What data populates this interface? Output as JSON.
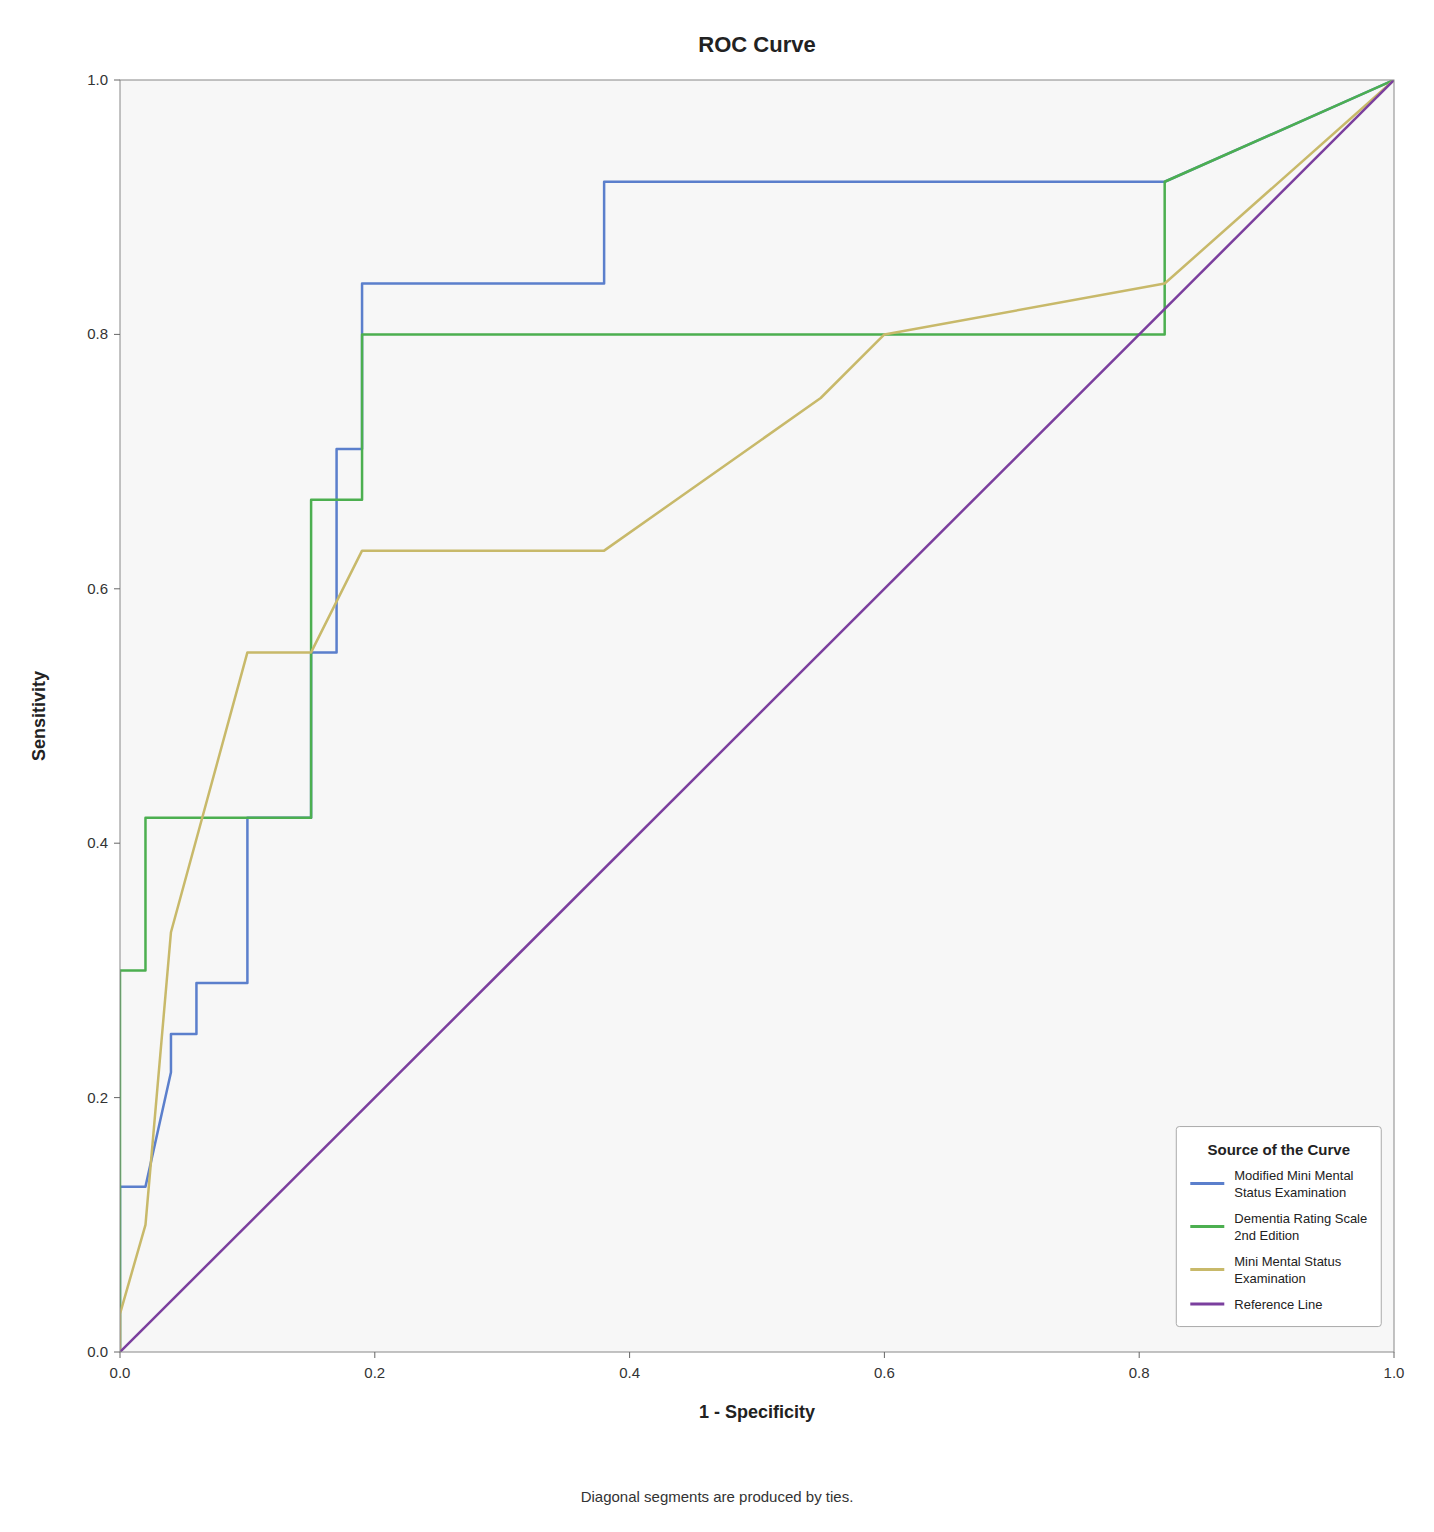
{
  "chart_data": {
    "type": "line",
    "title": "ROC Curve",
    "xlabel": "1 - Specificity",
    "ylabel": "Sensitivity",
    "annotations": [
      "Diagonal segments are produced by ties."
    ],
    "legend_title": "Source of the Curve",
    "xlim": [
      0.0,
      1.0
    ],
    "ylim": [
      0.0,
      1.0
    ],
    "xticks": [
      {
        "value": 0.0,
        "label": "0.0"
      },
      0.2,
      0.4,
      0.6,
      0.8,
      {
        "value": 1.0,
        "label": "1.0"
      }
    ],
    "yticks": [
      {
        "value": 0.0,
        "label": "0.0"
      },
      0.2,
      0.4,
      0.6,
      0.8,
      {
        "value": 1.0,
        "label": "1.0"
      }
    ],
    "grid": false,
    "legend": "lower right",
    "series": [
      {
        "name": "Modified Mini Mental\nStatus Examination",
        "color": "#5b7fcc",
        "x": [
          0.0,
          0.0,
          0.02,
          0.04,
          0.04,
          0.06,
          0.06,
          0.1,
          0.1,
          0.15,
          0.15,
          0.17,
          0.17,
          0.19,
          0.19,
          0.38,
          0.38,
          0.55,
          0.82,
          1.0
        ],
        "values": [
          0.0,
          0.13,
          0.13,
          0.22,
          0.25,
          0.25,
          0.29,
          0.29,
          0.42,
          0.42,
          0.55,
          0.55,
          0.71,
          0.71,
          0.84,
          0.84,
          0.92,
          0.92,
          0.92,
          1.0
        ]
      },
      {
        "name": "Dementia Rating Scale\n2nd Edition",
        "color": "#4caf50",
        "x": [
          0.0,
          0.0,
          0.02,
          0.02,
          0.15,
          0.15,
          0.19,
          0.19,
          0.38,
          0.55,
          0.82,
          0.82,
          1.0
        ],
        "values": [
          0.0,
          0.3,
          0.3,
          0.42,
          0.42,
          0.67,
          0.67,
          0.8,
          0.8,
          0.8,
          0.8,
          0.92,
          1.0
        ]
      },
      {
        "name": "Mini Mental Status\nExamination",
        "color": "#c8b96a",
        "x": [
          0.0,
          0.0,
          0.02,
          0.04,
          0.1,
          0.15,
          0.19,
          0.38,
          0.55,
          0.6,
          0.82,
          1.0
        ],
        "values": [
          0.0,
          0.03,
          0.1,
          0.33,
          0.55,
          0.55,
          0.63,
          0.63,
          0.75,
          0.8,
          0.84,
          1.0
        ]
      },
      {
        "name": "Reference Line",
        "color": "#7b3f9e",
        "x": [
          0.0,
          1.0
        ],
        "values": [
          0.0,
          1.0
        ]
      }
    ]
  }
}
